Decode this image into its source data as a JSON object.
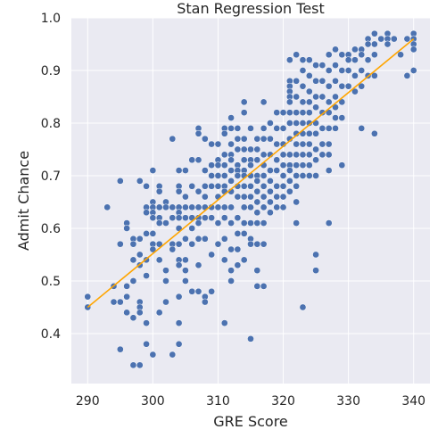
{
  "chart_data": {
    "type": "scatter",
    "title": "Stan Regression Test",
    "xlabel": "GRE Score",
    "ylabel": "Admit Chance",
    "xlim": [
      287.5,
      342.5
    ],
    "ylim": [
      0.305,
      1.0
    ],
    "xticks": [
      290,
      300,
      310,
      320,
      330,
      340
    ],
    "yticks": [
      0.4,
      0.5,
      0.6,
      0.7,
      0.8,
      0.9,
      1.0
    ],
    "xtick_labels": [
      "290",
      "300",
      "310",
      "320",
      "330",
      "340"
    ],
    "ytick_labels": [
      "0.4",
      "0.5",
      "0.6",
      "0.7",
      "0.8",
      "0.9",
      "1.0"
    ],
    "grid": true,
    "background_color": "#eaeaf2",
    "point_color": "#4c72b0",
    "line_color": "#ffa500",
    "regression_line": {
      "x": [
        290,
        340
      ],
      "y": [
        0.45,
        0.96
      ]
    },
    "points": [
      [
        290,
        0.47
      ],
      [
        290,
        0.45
      ],
      [
        293,
        0.64
      ],
      [
        294,
        0.49
      ],
      [
        294,
        0.46
      ],
      [
        295,
        0.69
      ],
      [
        295,
        0.57
      ],
      [
        295,
        0.46
      ],
      [
        295,
        0.37
      ],
      [
        296,
        0.61
      ],
      [
        296,
        0.6
      ],
      [
        296,
        0.49
      ],
      [
        296,
        0.47
      ],
      [
        296,
        0.44
      ],
      [
        297,
        0.58
      ],
      [
        297,
        0.57
      ],
      [
        297,
        0.54
      ],
      [
        297,
        0.5
      ],
      [
        297,
        0.43
      ],
      [
        297,
        0.34
      ],
      [
        298,
        0.69
      ],
      [
        298,
        0.58
      ],
      [
        298,
        0.55
      ],
      [
        298,
        0.53
      ],
      [
        298,
        0.46
      ],
      [
        298,
        0.45
      ],
      [
        298,
        0.44
      ],
      [
        298,
        0.34
      ],
      [
        299,
        0.68
      ],
      [
        299,
        0.64
      ],
      [
        299,
        0.63
      ],
      [
        299,
        0.59
      ],
      [
        299,
        0.54
      ],
      [
        299,
        0.51
      ],
      [
        299,
        0.42
      ],
      [
        299,
        0.38
      ],
      [
        300,
        0.71
      ],
      [
        300,
        0.65
      ],
      [
        300,
        0.64
      ],
      [
        300,
        0.63
      ],
      [
        300,
        0.62
      ],
      [
        300,
        0.59
      ],
      [
        300,
        0.57
      ],
      [
        300,
        0.56
      ],
      [
        300,
        0.36
      ],
      [
        301,
        0.68
      ],
      [
        301,
        0.67
      ],
      [
        301,
        0.64
      ],
      [
        301,
        0.62
      ],
      [
        301,
        0.61
      ],
      [
        301,
        0.57
      ],
      [
        301,
        0.54
      ],
      [
        301,
        0.44
      ],
      [
        302,
        0.65
      ],
      [
        302,
        0.64
      ],
      [
        302,
        0.61
      ],
      [
        302,
        0.52
      ],
      [
        302,
        0.5
      ],
      [
        302,
        0.46
      ],
      [
        303,
        0.77
      ],
      [
        303,
        0.64
      ],
      [
        303,
        0.62
      ],
      [
        303,
        0.57
      ],
      [
        303,
        0.56
      ],
      [
        303,
        0.36
      ],
      [
        304,
        0.71
      ],
      [
        304,
        0.68
      ],
      [
        304,
        0.67
      ],
      [
        304,
        0.64
      ],
      [
        304,
        0.63
      ],
      [
        304,
        0.62
      ],
      [
        304,
        0.6
      ],
      [
        304,
        0.57
      ],
      [
        304,
        0.54
      ],
      [
        304,
        0.53
      ],
      [
        304,
        0.47
      ],
      [
        304,
        0.42
      ],
      [
        304,
        0.38
      ],
      [
        305,
        0.71
      ],
      [
        305,
        0.66
      ],
      [
        305,
        0.64
      ],
      [
        305,
        0.62
      ],
      [
        305,
        0.58
      ],
      [
        305,
        0.54
      ],
      [
        305,
        0.52
      ],
      [
        305,
        0.5
      ],
      [
        306,
        0.73
      ],
      [
        306,
        0.68
      ],
      [
        306,
        0.64
      ],
      [
        306,
        0.62
      ],
      [
        306,
        0.6
      ],
      [
        306,
        0.57
      ],
      [
        306,
        0.48
      ],
      [
        307,
        0.79
      ],
      [
        307,
        0.78
      ],
      [
        307,
        0.73
      ],
      [
        307,
        0.67
      ],
      [
        307,
        0.64
      ],
      [
        307,
        0.62
      ],
      [
        307,
        0.61
      ],
      [
        307,
        0.58
      ],
      [
        307,
        0.53
      ],
      [
        307,
        0.48
      ],
      [
        308,
        0.77
      ],
      [
        308,
        0.71
      ],
      [
        308,
        0.68
      ],
      [
        308,
        0.66
      ],
      [
        308,
        0.64
      ],
      [
        308,
        0.62
      ],
      [
        308,
        0.58
      ],
      [
        308,
        0.47
      ],
      [
        308,
        0.46
      ],
      [
        309,
        0.76
      ],
      [
        309,
        0.72
      ],
      [
        309,
        0.7
      ],
      [
        309,
        0.68
      ],
      [
        309,
        0.64
      ],
      [
        309,
        0.62
      ],
      [
        309,
        0.55
      ],
      [
        309,
        0.48
      ],
      [
        310,
        0.76
      ],
      [
        310,
        0.73
      ],
      [
        310,
        0.72
      ],
      [
        310,
        0.7
      ],
      [
        310,
        0.68
      ],
      [
        310,
        0.66
      ],
      [
        310,
        0.64
      ],
      [
        310,
        0.61
      ],
      [
        310,
        0.57
      ],
      [
        311,
        0.79
      ],
      [
        311,
        0.78
      ],
      [
        311,
        0.74
      ],
      [
        311,
        0.72
      ],
      [
        311,
        0.7
      ],
      [
        311,
        0.68
      ],
      [
        311,
        0.67
      ],
      [
        311,
        0.64
      ],
      [
        311,
        0.62
      ],
      [
        311,
        0.58
      ],
      [
        311,
        0.54
      ],
      [
        311,
        0.42
      ],
      [
        312,
        0.81
      ],
      [
        312,
        0.79
      ],
      [
        312,
        0.76
      ],
      [
        312,
        0.74
      ],
      [
        312,
        0.73
      ],
      [
        312,
        0.71
      ],
      [
        312,
        0.69
      ],
      [
        312,
        0.67
      ],
      [
        312,
        0.64
      ],
      [
        312,
        0.61
      ],
      [
        312,
        0.56
      ],
      [
        312,
        0.52
      ],
      [
        312,
        0.5
      ],
      [
        313,
        0.79
      ],
      [
        313,
        0.77
      ],
      [
        313,
        0.75
      ],
      [
        313,
        0.72
      ],
      [
        313,
        0.71
      ],
      [
        313,
        0.7
      ],
      [
        313,
        0.68
      ],
      [
        313,
        0.66
      ],
      [
        313,
        0.62
      ],
      [
        313,
        0.59
      ],
      [
        313,
        0.56
      ],
      [
        313,
        0.53
      ],
      [
        314,
        0.84
      ],
      [
        314,
        0.82
      ],
      [
        314,
        0.77
      ],
      [
        314,
        0.75
      ],
      [
        314,
        0.73
      ],
      [
        314,
        0.71
      ],
      [
        314,
        0.7
      ],
      [
        314,
        0.68
      ],
      [
        314,
        0.66
      ],
      [
        314,
        0.64
      ],
      [
        314,
        0.61
      ],
      [
        314,
        0.59
      ],
      [
        314,
        0.54
      ],
      [
        315,
        0.79
      ],
      [
        315,
        0.75
      ],
      [
        315,
        0.73
      ],
      [
        315,
        0.72
      ],
      [
        315,
        0.7
      ],
      [
        315,
        0.68
      ],
      [
        315,
        0.66
      ],
      [
        315,
        0.64
      ],
      [
        315,
        0.61
      ],
      [
        315,
        0.58
      ],
      [
        315,
        0.57
      ],
      [
        315,
        0.39
      ],
      [
        316,
        0.77
      ],
      [
        316,
        0.75
      ],
      [
        316,
        0.73
      ],
      [
        316,
        0.7
      ],
      [
        316,
        0.69
      ],
      [
        316,
        0.67
      ],
      [
        316,
        0.65
      ],
      [
        316,
        0.63
      ],
      [
        316,
        0.61
      ],
      [
        316,
        0.57
      ],
      [
        316,
        0.52
      ],
      [
        316,
        0.49
      ],
      [
        317,
        0.84
      ],
      [
        317,
        0.79
      ],
      [
        317,
        0.77
      ],
      [
        317,
        0.74
      ],
      [
        317,
        0.72
      ],
      [
        317,
        0.7
      ],
      [
        317,
        0.68
      ],
      [
        317,
        0.66
      ],
      [
        317,
        0.64
      ],
      [
        317,
        0.61
      ],
      [
        317,
        0.57
      ],
      [
        317,
        0.49
      ],
      [
        318,
        0.8
      ],
      [
        318,
        0.77
      ],
      [
        318,
        0.74
      ],
      [
        318,
        0.71
      ],
      [
        318,
        0.69
      ],
      [
        318,
        0.67
      ],
      [
        318,
        0.65
      ],
      [
        318,
        0.63
      ],
      [
        319,
        0.82
      ],
      [
        319,
        0.79
      ],
      [
        319,
        0.76
      ],
      [
        319,
        0.73
      ],
      [
        319,
        0.71
      ],
      [
        319,
        0.68
      ],
      [
        319,
        0.66
      ],
      [
        319,
        0.64
      ],
      [
        320,
        0.82
      ],
      [
        320,
        0.79
      ],
      [
        320,
        0.76
      ],
      [
        320,
        0.74
      ],
      [
        320,
        0.72
      ],
      [
        320,
        0.7
      ],
      [
        320,
        0.68
      ],
      [
        320,
        0.66
      ],
      [
        320,
        0.64
      ],
      [
        321,
        0.92
      ],
      [
        321,
        0.88
      ],
      [
        321,
        0.87
      ],
      [
        321,
        0.86
      ],
      [
        321,
        0.85
      ],
      [
        321,
        0.84
      ],
      [
        321,
        0.82
      ],
      [
        321,
        0.8
      ],
      [
        321,
        0.77
      ],
      [
        321,
        0.74
      ],
      [
        321,
        0.72
      ],
      [
        321,
        0.71
      ],
      [
        321,
        0.69
      ],
      [
        321,
        0.67
      ],
      [
        322,
        0.93
      ],
      [
        322,
        0.88
      ],
      [
        322,
        0.85
      ],
      [
        322,
        0.82
      ],
      [
        322,
        0.8
      ],
      [
        322,
        0.78
      ],
      [
        322,
        0.76
      ],
      [
        322,
        0.74
      ],
      [
        322,
        0.72
      ],
      [
        322,
        0.7
      ],
      [
        322,
        0.68
      ],
      [
        322,
        0.65
      ],
      [
        322,
        0.61
      ],
      [
        323,
        0.92
      ],
      [
        323,
        0.9
      ],
      [
        323,
        0.87
      ],
      [
        323,
        0.84
      ],
      [
        323,
        0.82
      ],
      [
        323,
        0.8
      ],
      [
        323,
        0.78
      ],
      [
        323,
        0.76
      ],
      [
        323,
        0.74
      ],
      [
        323,
        0.72
      ],
      [
        323,
        0.7
      ],
      [
        323,
        0.45
      ],
      [
        324,
        0.92
      ],
      [
        324,
        0.89
      ],
      [
        324,
        0.86
      ],
      [
        324,
        0.84
      ],
      [
        324,
        0.82
      ],
      [
        324,
        0.8
      ],
      [
        324,
        0.78
      ],
      [
        324,
        0.76
      ],
      [
        324,
        0.74
      ],
      [
        324,
        0.72
      ],
      [
        324,
        0.7
      ],
      [
        325,
        0.91
      ],
      [
        325,
        0.88
      ],
      [
        325,
        0.85
      ],
      [
        325,
        0.83
      ],
      [
        325,
        0.8
      ],
      [
        325,
        0.78
      ],
      [
        325,
        0.75
      ],
      [
        325,
        0.73
      ],
      [
        325,
        0.7
      ],
      [
        325,
        0.55
      ],
      [
        325,
        0.52
      ],
      [
        326,
        0.91
      ],
      [
        326,
        0.88
      ],
      [
        326,
        0.85
      ],
      [
        326,
        0.82
      ],
      [
        326,
        0.79
      ],
      [
        326,
        0.76
      ],
      [
        326,
        0.74
      ],
      [
        327,
        0.93
      ],
      [
        327,
        0.9
      ],
      [
        327,
        0.87
      ],
      [
        327,
        0.84
      ],
      [
        327,
        0.82
      ],
      [
        327,
        0.79
      ],
      [
        327,
        0.76
      ],
      [
        327,
        0.74
      ],
      [
        327,
        0.71
      ],
      [
        327,
        0.61
      ],
      [
        328,
        0.94
      ],
      [
        328,
        0.91
      ],
      [
        328,
        0.88
      ],
      [
        328,
        0.85
      ],
      [
        328,
        0.83
      ],
      [
        328,
        0.81
      ],
      [
        328,
        0.79
      ],
      [
        329,
        0.93
      ],
      [
        329,
        0.9
      ],
      [
        329,
        0.87
      ],
      [
        329,
        0.84
      ],
      [
        329,
        0.81
      ],
      [
        329,
        0.72
      ],
      [
        330,
        0.93
      ],
      [
        330,
        0.92
      ],
      [
        330,
        0.9
      ],
      [
        330,
        0.87
      ],
      [
        331,
        0.94
      ],
      [
        331,
        0.92
      ],
      [
        331,
        0.89
      ],
      [
        331,
        0.86
      ],
      [
        332,
        0.94
      ],
      [
        332,
        0.93
      ],
      [
        332,
        0.9
      ],
      [
        332,
        0.87
      ],
      [
        332,
        0.79
      ],
      [
        333,
        0.96
      ],
      [
        333,
        0.95
      ],
      [
        333,
        0.92
      ],
      [
        333,
        0.89
      ],
      [
        334,
        0.97
      ],
      [
        334,
        0.95
      ],
      [
        334,
        0.93
      ],
      [
        334,
        0.89
      ],
      [
        334,
        0.78
      ],
      [
        335,
        0.96
      ],
      [
        336,
        0.97
      ],
      [
        336,
        0.96
      ],
      [
        336,
        0.95
      ],
      [
        337,
        0.96
      ],
      [
        338,
        0.93
      ],
      [
        339,
        0.96
      ],
      [
        339,
        0.89
      ],
      [
        340,
        0.97
      ],
      [
        340,
        0.96
      ],
      [
        340,
        0.95
      ],
      [
        340,
        0.94
      ],
      [
        340,
        0.9
      ]
    ]
  }
}
